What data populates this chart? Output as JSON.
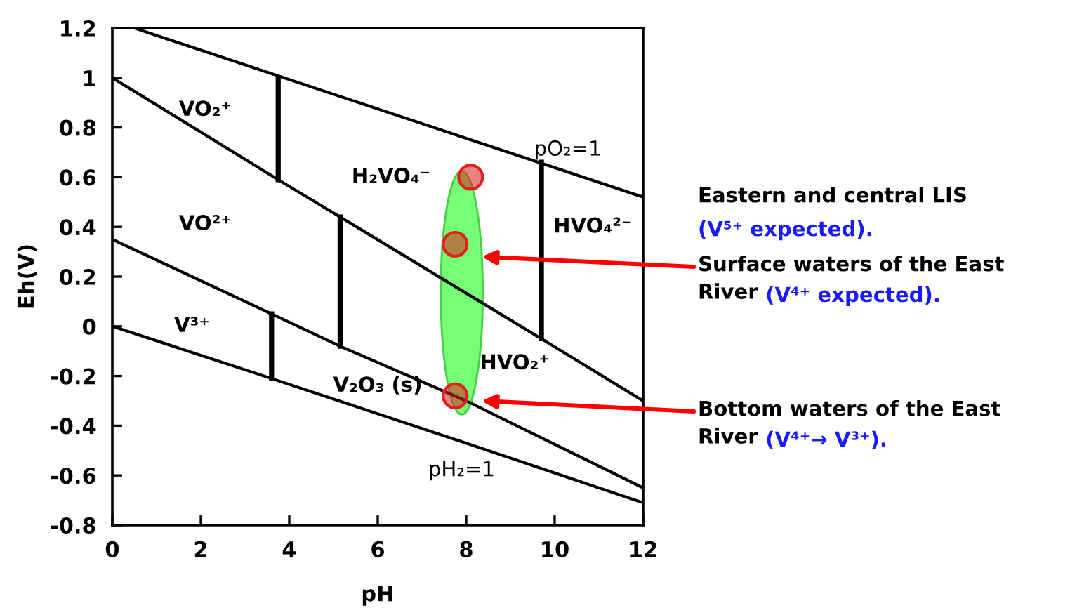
{
  "chart_data": {
    "type": "line",
    "xlabel": "pH",
    "ylabel": "Eh(V)",
    "xlim": [
      0,
      12
    ],
    "ylim": [
      -0.8,
      1.2
    ],
    "xticks": [
      0,
      2,
      4,
      6,
      8,
      10,
      12
    ],
    "yticks": [
      -0.8,
      -0.6,
      -0.4,
      -0.2,
      0,
      0.2,
      0.4,
      0.6,
      0.8,
      1,
      1.2
    ],
    "grid": false,
    "series": [
      {
        "color": "#000000",
        "x": [
          0.5,
          12
        ],
        "values": [
          1.2,
          0.52
        ]
      },
      {
        "color": "#000000",
        "x": [
          0,
          3.6,
          8,
          12
        ],
        "values": [
          0,
          -0.21,
          -0.47,
          -0.71
        ]
      },
      {
        "color": "#000000",
        "x": [
          0,
          3.75,
          5.15,
          9.7,
          12
        ],
        "values": [
          1.0,
          0.59,
          0.44,
          -0.05,
          -0.3
        ]
      },
      {
        "color": "#000000",
        "x": [
          0,
          3.6,
          5.15,
          8,
          12
        ],
        "values": [
          0.35,
          0.05,
          -0.08,
          -0.3,
          -0.65
        ]
      },
      {
        "color": "#000000",
        "x": [
          3.75,
          3.75
        ],
        "values": [
          0.59,
          1.0
        ]
      },
      {
        "color": "#000000",
        "x": [
          5.15,
          5.15
        ],
        "values": [
          -0.08,
          0.44
        ]
      },
      {
        "color": "#000000",
        "x": [
          3.6,
          3.6
        ],
        "values": [
          -0.21,
          0.05
        ]
      },
      {
        "color": "#000000",
        "x": [
          9.7,
          9.7
        ],
        "values": [
          -0.05,
          0.66
        ]
      },
      {
        "type": "scatter",
        "color": "#e02020",
        "x": [
          8.1,
          7.75,
          7.75
        ],
        "values": [
          0.6,
          0.33,
          -0.28
        ]
      }
    ],
    "annotations": [
      "VO₂⁺",
      "H₂VO₄⁻",
      "VO²⁺",
      "HVO₄²⁻",
      "V³⁺",
      "V₂O₃ (s)",
      "HVO₂⁺",
      "pO₂=1",
      "pH₂=1",
      "Eastern and central LIS",
      "(V⁵⁺ expected).",
      "Surface waters of the East\nRiver",
      "(V⁴⁺ expected).",
      "Bottom waters of the East\nRiver",
      "(V⁴⁺→ V³⁺)."
    ]
  }
}
